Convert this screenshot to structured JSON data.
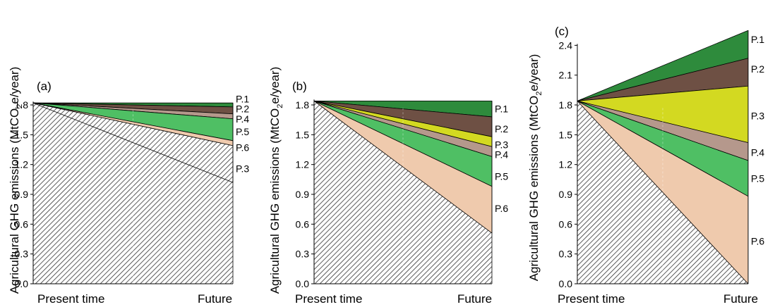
{
  "colors": {
    "P.1": "#2e8b3c",
    "P.2": "#6e5044",
    "P.3": "#d3d921",
    "P.4": "#b5988c",
    "P.5": "#4fbf64",
    "P.6": "#efcaad",
    "hatch": "#333333"
  },
  "chart_data": [
    {
      "type": "area",
      "panel_label": "(a)",
      "ylabel": "Agricultural GHG emissions (MtCO",
      "ylabel_sub": "2",
      "ylabel_suffix": "e/year)",
      "categories": [
        "Present time",
        "Future"
      ],
      "yticks": [
        "0.0",
        "0.3",
        "0.6",
        "0.9",
        "1.2",
        "1.5",
        "1.8"
      ],
      "ylim": [
        0,
        2.7
      ],
      "start": 1.82,
      "baseline_future": 1.02,
      "series": [
        {
          "name": "P.1",
          "future_top": 1.82,
          "future_bottom": 1.78,
          "hatched": false
        },
        {
          "name": "P.2",
          "future_top": 1.78,
          "future_bottom": 1.71,
          "hatched": false
        },
        {
          "name": "P.4",
          "future_top": 1.71,
          "future_bottom": 1.66,
          "hatched": false
        },
        {
          "name": "P.5",
          "future_top": 1.66,
          "future_bottom": 1.44,
          "hatched": false
        },
        {
          "name": "P.6",
          "future_top": 1.44,
          "future_bottom": 1.39,
          "hatched": false
        },
        {
          "name": "P.3",
          "future_top": 1.39,
          "future_bottom": 1.02,
          "hatched": true
        }
      ],
      "label_values": [
        1.86,
        1.76,
        1.66,
        1.53,
        1.37,
        1.16
      ]
    },
    {
      "type": "area",
      "panel_label": "(b)",
      "ylabel": "Agricultural GHG emissions (MtCO",
      "ylabel_sub": "2",
      "ylabel_suffix": "e/year)",
      "categories": [
        "Present time",
        "Future"
      ],
      "yticks": [
        "0.0",
        "0.3",
        "0.6",
        "0.9",
        "1.2",
        "1.5",
        "1.8"
      ],
      "ylim": [
        0,
        2.7
      ],
      "start": 1.84,
      "baseline_future": 0.51,
      "series": [
        {
          "name": "P.1",
          "future_top": 1.84,
          "future_bottom": 1.68,
          "hatched": false
        },
        {
          "name": "P.2",
          "future_top": 1.68,
          "future_bottom": 1.48,
          "hatched": false
        },
        {
          "name": "P.3",
          "future_top": 1.48,
          "future_bottom": 1.38,
          "hatched": false
        },
        {
          "name": "P.4",
          "future_top": 1.38,
          "future_bottom": 1.28,
          "hatched": false
        },
        {
          "name": "P.5",
          "future_top": 1.28,
          "future_bottom": 0.98,
          "hatched": false
        },
        {
          "name": "P.6",
          "future_top": 0.98,
          "future_bottom": 0.51,
          "hatched": false
        }
      ],
      "label_values": [
        1.76,
        1.56,
        1.4,
        1.3,
        1.08,
        0.76
      ]
    },
    {
      "type": "area",
      "panel_label": "(c)",
      "ylabel": "Agricultural GHG emissions (MtCO",
      "ylabel_sub": "2",
      "ylabel_suffix": "e/year)",
      "categories": [
        "Present time",
        "Future"
      ],
      "yticks": [
        "0.0",
        "0.3",
        "0.6",
        "0.9",
        "1.2",
        "1.5",
        "1.8",
        "2.1",
        "2.4"
      ],
      "ylim": [
        0,
        2.7
      ],
      "start": 1.84,
      "baseline_future": 0.0,
      "series": [
        {
          "name": "P.1",
          "future_top": 2.55,
          "future_bottom": 2.27,
          "hatched": false
        },
        {
          "name": "P.2",
          "future_top": 2.27,
          "future_bottom": 1.99,
          "hatched": false
        },
        {
          "name": "P.3",
          "future_top": 1.99,
          "future_bottom": 1.42,
          "hatched": false
        },
        {
          "name": "P.4",
          "future_top": 1.42,
          "future_bottom": 1.24,
          "hatched": false
        },
        {
          "name": "P.5",
          "future_top": 1.24,
          "future_bottom": 0.88,
          "hatched": false
        },
        {
          "name": "P.6",
          "future_top": 0.88,
          "future_bottom": 0.0,
          "hatched": false
        }
      ],
      "label_values": [
        2.46,
        2.16,
        1.69,
        1.32,
        1.06,
        0.43
      ]
    }
  ]
}
